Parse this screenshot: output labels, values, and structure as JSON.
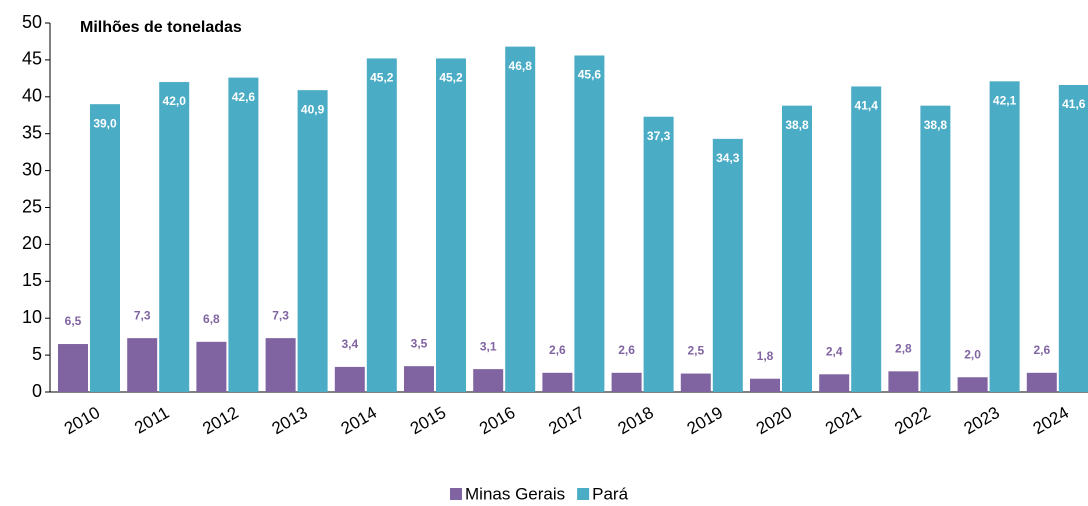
{
  "chart_data": {
    "type": "bar",
    "title": "Milhões de toneladas",
    "categories": [
      "2010",
      "2011",
      "2012",
      "2013",
      "2014",
      "2015",
      "2016",
      "2017",
      "2018",
      "2019",
      "2020",
      "2021",
      "2022",
      "2023",
      "2024"
    ],
    "series": [
      {
        "name": "Minas Gerais",
        "color": "#8064a2",
        "values": [
          6.5,
          7.3,
          6.8,
          7.3,
          3.4,
          3.5,
          3.1,
          2.6,
          2.6,
          2.5,
          1.8,
          2.4,
          2.8,
          2.0,
          2.6
        ],
        "value_labels": [
          "6,5",
          "7,3",
          "6,8",
          "7,3",
          "3,4",
          "3,5",
          "3,1",
          "2,6",
          "2,6",
          "2,5",
          "1,8",
          "2,4",
          "2,8",
          "2,0",
          "2,6"
        ]
      },
      {
        "name": "Pará",
        "color": "#4bacc6",
        "values": [
          39.0,
          42.0,
          42.6,
          40.9,
          45.2,
          45.2,
          46.8,
          45.6,
          37.3,
          34.3,
          38.8,
          41.4,
          38.8,
          42.1,
          41.6
        ],
        "value_labels": [
          "39,0",
          "42,0",
          "42,6",
          "40,9",
          "45,2",
          "45,2",
          "46,8",
          "45,6",
          "37,3",
          "34,3",
          "38,8",
          "41,4",
          "38,8",
          "42,1",
          "41,6"
        ]
      }
    ],
    "ylim": [
      0,
      50
    ],
    "yticks": [
      0,
      5,
      10,
      15,
      20,
      25,
      30,
      35,
      40,
      45,
      50
    ],
    "legend": "bottom"
  }
}
